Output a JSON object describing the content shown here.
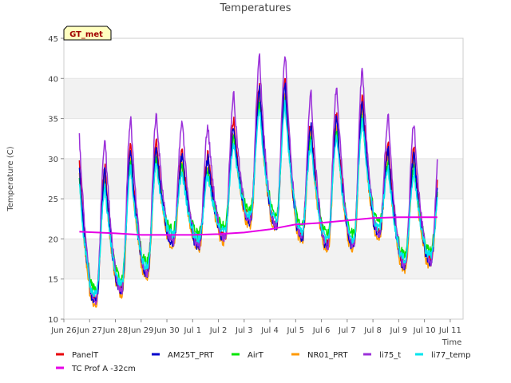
{
  "chart_data": {
    "type": "line",
    "title": "Temperatures",
    "xlabel": "Time",
    "ylabel": "Temperature (C)",
    "badge": "GT_met",
    "xlim": [
      0,
      15.5
    ],
    "ylim": [
      10,
      45
    ],
    "yticks": [
      10,
      15,
      20,
      25,
      30,
      35,
      40,
      45
    ],
    "xticks": [
      {
        "pos": 0,
        "label": "Jun 26"
      },
      {
        "pos": 1,
        "label": "Jun 27"
      },
      {
        "pos": 2,
        "label": "Jun 28"
      },
      {
        "pos": 3,
        "label": "Jun 29"
      },
      {
        "pos": 4,
        "label": "Jun 30"
      },
      {
        "pos": 5,
        "label": "Jul 1"
      },
      {
        "pos": 6,
        "label": "Jul 2"
      },
      {
        "pos": 7,
        "label": "Jul 3"
      },
      {
        "pos": 8,
        "label": "Jul 4"
      },
      {
        "pos": 9,
        "label": "Jul 5"
      },
      {
        "pos": 10,
        "label": "Jul 6"
      },
      {
        "pos": 11,
        "label": "Jul 7"
      },
      {
        "pos": 12,
        "label": "Jul 8"
      },
      {
        "pos": 13,
        "label": "Jul 9"
      },
      {
        "pos": 14,
        "label": "Jul 10"
      },
      {
        "pos": 15,
        "label": "Jul 11"
      }
    ],
    "grid": "horizontal bands",
    "legend_position": "bottom",
    "series": [
      {
        "name": "PanelT",
        "color": "#e8000b",
        "peak_offset": 0.6,
        "min_offset": 0.0
      },
      {
        "name": "AM25T_PRT",
        "color": "#0000cc",
        "peak_offset": 0.0,
        "min_offset": -0.4
      },
      {
        "name": "AirT",
        "color": "#00e600",
        "peak_offset": -1.6,
        "min_offset": 1.2
      },
      {
        "name": "NR01_PRT",
        "color": "#ff9900",
        "peak_offset": -1.0,
        "min_offset": -0.8
      },
      {
        "name": "li75_t",
        "color": "#9b30d9",
        "peak_offset": 4.0,
        "min_offset": -0.3
      },
      {
        "name": "li77_temp",
        "color": "#00e5ee",
        "peak_offset": -2.2,
        "min_offset": 0.5
      },
      {
        "name": "TC Prof A -32cm",
        "color": "#e600e6"
      }
    ],
    "daily_max": [
      29.0,
      28.5,
      31.0,
      31.5,
      30.5,
      30.0,
      34.0,
      38.5,
      39.0,
      34.0,
      35.0,
      37.0,
      31.0,
      30.5,
      28.5
    ],
    "daily_min": [
      17.5,
      12.5,
      14.0,
      16.0,
      20.0,
      19.5,
      20.5,
      22.5,
      22.0,
      20.5,
      19.5,
      19.5,
      21.0,
      17.0,
      17.5
    ],
    "soil_series": {
      "x": [
        0.6,
        2.0,
        3.0,
        4.0,
        5.0,
        6.0,
        7.0,
        7.5,
        8.0,
        8.5,
        9.0,
        10.0,
        11.0,
        12.0,
        13.0,
        14.0,
        14.5
      ],
      "y": [
        20.9,
        20.7,
        20.5,
        20.5,
        20.5,
        20.6,
        20.8,
        21.0,
        21.2,
        21.5,
        21.8,
        22.0,
        22.3,
        22.6,
        22.7,
        22.7,
        22.7
      ]
    },
    "x_end": 14.5
  }
}
